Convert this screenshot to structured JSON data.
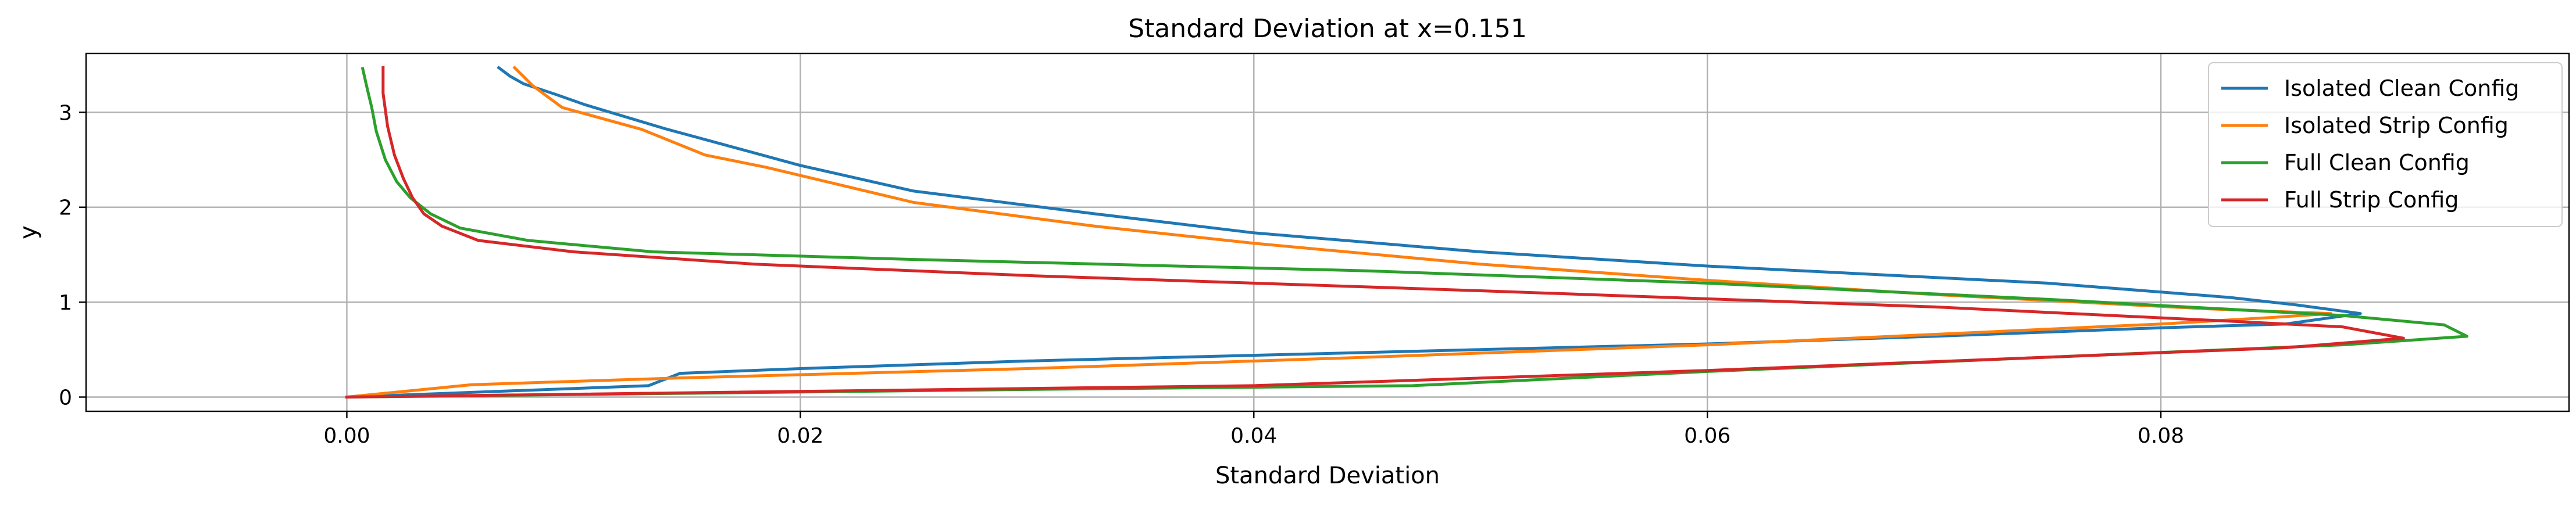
{
  "chart_data": {
    "type": "line",
    "title": "Standard Deviation at x=0.151",
    "xlabel": "Standard Deviation",
    "ylabel": "y",
    "xlim": [
      -0.0115,
      0.098
    ],
    "ylim": [
      -0.15,
      3.62
    ],
    "xticks": [
      0.0,
      0.02,
      0.04,
      0.06,
      0.08
    ],
    "xtick_labels": [
      "0.00",
      "0.02",
      "0.04",
      "0.06",
      "0.08"
    ],
    "yticks": [
      0,
      1,
      2,
      3
    ],
    "ytick_labels": [
      "0",
      "1",
      "2",
      "3"
    ],
    "grid": true,
    "legend_position": "top-right",
    "series": [
      {
        "name": "Isolated Clean Config",
        "color": "#1f77b4",
        "x": [
          0.0,
          0.0133,
          0.0147,
          0.02,
          0.03,
          0.04,
          0.05,
          0.06,
          0.07,
          0.08,
          0.0855,
          0.0888,
          0.086,
          0.083,
          0.075,
          0.065,
          0.06,
          0.05,
          0.04,
          0.033,
          0.025,
          0.02,
          0.014,
          0.0105,
          0.0092,
          0.0078,
          0.0072,
          0.0067
        ],
        "y": [
          0.0,
          0.12,
          0.25,
          0.3,
          0.38,
          0.44,
          0.5,
          0.56,
          0.64,
          0.73,
          0.77,
          0.88,
          0.97,
          1.05,
          1.2,
          1.32,
          1.38,
          1.53,
          1.73,
          1.93,
          2.17,
          2.44,
          2.83,
          3.08,
          3.19,
          3.3,
          3.38,
          3.47
        ]
      },
      {
        "name": "Isolated Strip Config",
        "color": "#ff7f0e",
        "x": [
          0.0,
          0.0055,
          0.0145,
          0.03,
          0.045,
          0.06,
          0.07,
          0.08,
          0.085,
          0.0875,
          0.082,
          0.07,
          0.06,
          0.05,
          0.04,
          0.033,
          0.025,
          0.0185,
          0.0158,
          0.013,
          0.0095,
          0.0082,
          0.0074
        ],
        "y": [
          0.0,
          0.13,
          0.2,
          0.3,
          0.42,
          0.55,
          0.66,
          0.77,
          0.84,
          0.88,
          0.93,
          1.08,
          1.23,
          1.4,
          1.62,
          1.8,
          2.05,
          2.42,
          2.55,
          2.82,
          3.05,
          3.28,
          3.47
        ]
      },
      {
        "name": "Full Clean Config",
        "color": "#2ca02c",
        "x": [
          0.0,
          0.03,
          0.047,
          0.06,
          0.075,
          0.088,
          0.0935,
          0.0925,
          0.088,
          0.075,
          0.06,
          0.045,
          0.025,
          0.0135,
          0.008,
          0.005,
          0.0037,
          0.0028,
          0.0022,
          0.0017,
          0.0013,
          0.0011,
          0.0009,
          0.0007
        ],
        "y": [
          0.0,
          0.08,
          0.12,
          0.27,
          0.42,
          0.55,
          0.64,
          0.76,
          0.86,
          1.03,
          1.2,
          1.33,
          1.45,
          1.53,
          1.65,
          1.78,
          1.93,
          2.1,
          2.27,
          2.5,
          2.8,
          3.05,
          3.25,
          3.46
        ]
      },
      {
        "name": "Full Strip Config",
        "color": "#d62728",
        "x": [
          0.0,
          0.04,
          0.06,
          0.075,
          0.0855,
          0.0907,
          0.088,
          0.083,
          0.07,
          0.05,
          0.03,
          0.018,
          0.01,
          0.0058,
          0.0042,
          0.0034,
          0.0029,
          0.0025,
          0.0021,
          0.0018,
          0.0016,
          0.0016
        ],
        "y": [
          0.0,
          0.12,
          0.28,
          0.42,
          0.52,
          0.62,
          0.74,
          0.8,
          0.95,
          1.12,
          1.28,
          1.4,
          1.53,
          1.65,
          1.8,
          1.93,
          2.1,
          2.3,
          2.55,
          2.85,
          3.2,
          3.47
        ]
      }
    ]
  }
}
